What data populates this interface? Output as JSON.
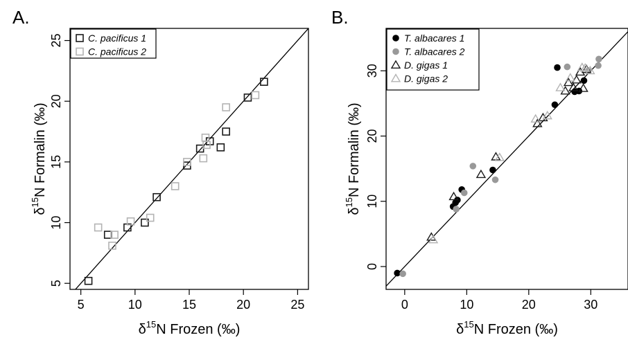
{
  "chart_data": [
    {
      "panel_label": "A.",
      "type": "scatter",
      "xlabel": "δ15N Frozen (‰)",
      "ylabel": "δ15N Formalin (‰)",
      "xlim": [
        4,
        26
      ],
      "ylim": [
        4.5,
        26
      ],
      "xticks": [
        5,
        10,
        15,
        20,
        25
      ],
      "yticks": [
        5,
        10,
        15,
        20,
        25
      ],
      "identity_line": true,
      "legend_position": "top-left",
      "series": [
        {
          "name": "C. pacificus 1",
          "marker": "square-open",
          "color": "#1a1a1a",
          "points": [
            [
              5.7,
              5.2
            ],
            [
              7.5,
              9.0
            ],
            [
              9.3,
              9.6
            ],
            [
              10.9,
              10.0
            ],
            [
              12.0,
              12.1
            ],
            [
              14.8,
              14.7
            ],
            [
              16.0,
              16.1
            ],
            [
              16.9,
              16.7
            ],
            [
              17.9,
              16.2
            ],
            [
              18.4,
              17.5
            ],
            [
              20.4,
              20.3
            ],
            [
              21.9,
              21.6
            ]
          ]
        },
        {
          "name": "C. pacificus 2",
          "marker": "square-open",
          "color": "#b3b3b3",
          "points": [
            [
              6.6,
              9.6
            ],
            [
              7.9,
              8.1
            ],
            [
              8.1,
              9.0
            ],
            [
              9.6,
              10.1
            ],
            [
              11.4,
              10.4
            ],
            [
              13.7,
              13.0
            ],
            [
              14.8,
              15.0
            ],
            [
              16.3,
              15.3
            ],
            [
              16.5,
              17.0
            ],
            [
              16.6,
              16.4
            ],
            [
              18.4,
              19.5
            ],
            [
              21.1,
              20.5
            ]
          ]
        }
      ]
    },
    {
      "panel_label": "B.",
      "type": "scatter",
      "xlabel": "δ15N Frozen (‰)",
      "ylabel": "δ15N Formalin (‰)",
      "xlim": [
        -3,
        36
      ],
      "ylim": [
        -3.5,
        36.5
      ],
      "xticks": [
        0,
        10,
        20,
        30
      ],
      "yticks": [
        0,
        10,
        20,
        30
      ],
      "identity_line": true,
      "legend_position": "top-left",
      "series": [
        {
          "name": "T. albacares 1",
          "marker": "circle-filled",
          "color": "#000000",
          "points": [
            [
              -1.2,
              -1.0
            ],
            [
              7.8,
              9.2
            ],
            [
              8.2,
              9.8
            ],
            [
              8.5,
              10.2
            ],
            [
              9.2,
              11.8
            ],
            [
              14.2,
              14.8
            ],
            [
              24.2,
              24.8
            ],
            [
              24.6,
              30.5
            ],
            [
              27.4,
              26.8
            ],
            [
              28.1,
              26.9
            ],
            [
              28.9,
              28.5
            ]
          ]
        },
        {
          "name": "T. albacares 2",
          "marker": "circle-filled",
          "color": "#999999",
          "points": [
            [
              -0.3,
              -1.1
            ],
            [
              8.3,
              8.8
            ],
            [
              9.6,
              11.3
            ],
            [
              11.0,
              15.4
            ],
            [
              14.6,
              13.3
            ],
            [
              26.2,
              30.6
            ],
            [
              29.6,
              30.0
            ],
            [
              31.2,
              30.8
            ],
            [
              31.3,
              31.8
            ]
          ]
        },
        {
          "name": "D. gigas 1",
          "marker": "triangle-open",
          "color": "#1a1a1a",
          "points": [
            [
              4.3,
              4.5
            ],
            [
              7.9,
              10.7
            ],
            [
              12.3,
              14.1
            ],
            [
              14.7,
              16.8
            ],
            [
              21.4,
              21.9
            ],
            [
              22.3,
              22.8
            ],
            [
              25.9,
              26.9
            ],
            [
              26.4,
              28.2
            ],
            [
              27.2,
              27.4
            ],
            [
              27.7,
              28.6
            ],
            [
              28.3,
              29.8
            ],
            [
              28.8,
              27.3
            ],
            [
              29.3,
              30.2
            ]
          ]
        },
        {
          "name": "D. gigas 2",
          "marker": "triangle-open",
          "color": "#b3b3b3",
          "points": [
            [
              4.6,
              4.1
            ],
            [
              15.3,
              16.7
            ],
            [
              21.1,
              22.6
            ],
            [
              23.0,
              23.1
            ],
            [
              25.1,
              27.4
            ],
            [
              26.7,
              28.9
            ],
            [
              28.6,
              30.5
            ],
            [
              29.1,
              30.4
            ],
            [
              29.9,
              30.0
            ]
          ]
        }
      ]
    }
  ]
}
